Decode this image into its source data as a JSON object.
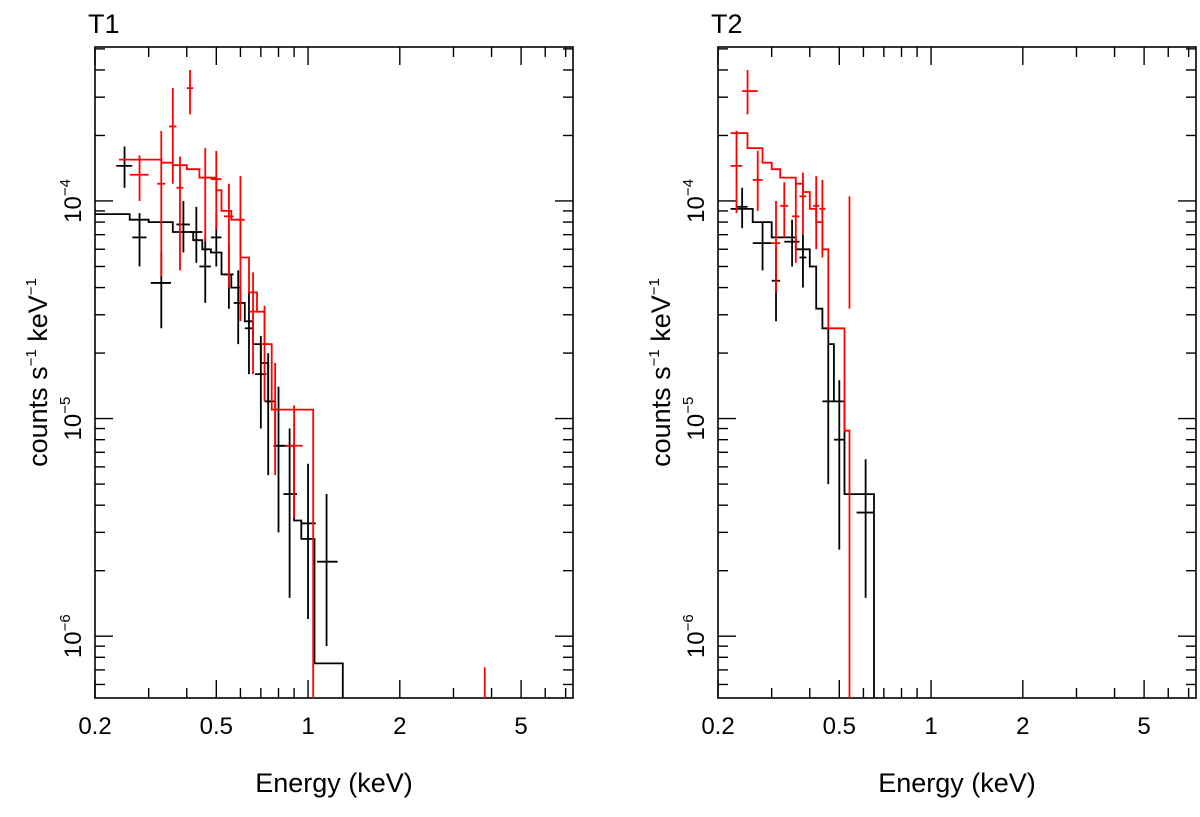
{
  "chart_data": [
    {
      "type": "scatter",
      "title": "T1",
      "xlabel": "Energy (keV)",
      "ylabel": {
        "base": "counts s",
        "exp1": "−1",
        "mid": " keV",
        "exp2": "−1"
      },
      "xscale": "log",
      "yscale": "log",
      "xlim": [
        0.2,
        7.4
      ],
      "ylim": [
        5.2e-07,
        0.00051
      ],
      "xticks": [
        {
          "value": 0.2,
          "label": "0.2"
        },
        {
          "value": 0.5,
          "label": "0.5"
        },
        {
          "value": 1,
          "label": "1"
        },
        {
          "value": 2,
          "label": "2"
        },
        {
          "value": 5,
          "label": "5"
        }
      ],
      "yticks": [
        {
          "value": 0.0001,
          "base": "10",
          "exp": "−4"
        },
        {
          "value": 1e-05,
          "base": "10",
          "exp": "−5"
        },
        {
          "value": 1e-06,
          "base": "10",
          "exp": "−6"
        }
      ],
      "series": [
        {
          "name": "black",
          "color": "#000000",
          "points": [
            {
              "x": 0.25,
              "xlo": 0.235,
              "xhi": 0.265,
              "y": 0.000145,
              "ylo": 0.000115,
              "yhi": 0.000178
            },
            {
              "x": 0.28,
              "xlo": 0.265,
              "xhi": 0.295,
              "y": 6.8e-05,
              "ylo": 5e-05,
              "yhi": 8.8e-05
            },
            {
              "x": 0.33,
              "xlo": 0.305,
              "xhi": 0.355,
              "y": 4.2e-05,
              "ylo": 2.6e-05,
              "yhi": 5.8e-05
            },
            {
              "x": 0.39,
              "xlo": 0.37,
              "xhi": 0.41,
              "y": 7.8e-05,
              "ylo": 5.8e-05,
              "yhi": 0.0001
            },
            {
              "x": 0.43,
              "xlo": 0.41,
              "xhi": 0.45,
              "y": 7.2e-05,
              "ylo": 5.2e-05,
              "yhi": 9.4e-05
            },
            {
              "x": 0.46,
              "xlo": 0.44,
              "xhi": 0.48,
              "y": 5e-05,
              "ylo": 3.4e-05,
              "yhi": 6.8e-05
            },
            {
              "x": 0.5,
              "xlo": 0.48,
              "xhi": 0.52,
              "y": 6.8e-05,
              "ylo": 5e-05,
              "yhi": 8.8e-05
            },
            {
              "x": 0.55,
              "xlo": 0.53,
              "xhi": 0.57,
              "y": 4.6e-05,
              "ylo": 3.2e-05,
              "yhi": 6.2e-05
            },
            {
              "x": 0.59,
              "xlo": 0.57,
              "xhi": 0.61,
              "y": 3.4e-05,
              "ylo": 2.2e-05,
              "yhi": 4.8e-05
            },
            {
              "x": 0.64,
              "xlo": 0.62,
              "xhi": 0.66,
              "y": 2.6e-05,
              "ylo": 1.6e-05,
              "yhi": 3.8e-05
            },
            {
              "x": 0.7,
              "xlo": 0.67,
              "xhi": 0.73,
              "y": 1.6e-05,
              "ylo": 9e-06,
              "yhi": 2.4e-05
            },
            {
              "x": 0.74,
              "xlo": 0.72,
              "xhi": 0.76,
              "y": 1.2e-05,
              "ylo": 5.5e-06,
              "yhi": 2e-05
            },
            {
              "x": 0.8,
              "xlo": 0.77,
              "xhi": 0.83,
              "y": 7.5e-06,
              "ylo": 3e-06,
              "yhi": 1.4e-05
            },
            {
              "x": 0.87,
              "xlo": 0.83,
              "xhi": 0.92,
              "y": 4.5e-06,
              "ylo": 1.5e-06,
              "yhi": 9e-06
            },
            {
              "x": 1.0,
              "xlo": 0.95,
              "xhi": 1.06,
              "y": 3.3e-06,
              "ylo": 1.2e-06,
              "yhi": 6.2e-06
            },
            {
              "x": 1.15,
              "xlo": 1.07,
              "xhi": 1.25,
              "y": 2.2e-06,
              "ylo": 9e-07,
              "yhi": 4.5e-06
            }
          ],
          "model": [
            [
              0.2,
              8.7e-05
            ],
            [
              0.26,
              8.7e-05
            ],
            [
              0.26,
              8.2e-05
            ],
            [
              0.3,
              8.2e-05
            ],
            [
              0.3,
              8e-05
            ],
            [
              0.36,
              8e-05
            ],
            [
              0.36,
              7.2e-05
            ],
            [
              0.42,
              7.2e-05
            ],
            [
              0.42,
              6.6e-05
            ],
            [
              0.45,
              6.6e-05
            ],
            [
              0.45,
              6e-05
            ],
            [
              0.48,
              6e-05
            ],
            [
              0.48,
              5.8e-05
            ],
            [
              0.52,
              5.8e-05
            ],
            [
              0.52,
              4.6e-05
            ],
            [
              0.56,
              4.6e-05
            ],
            [
              0.56,
              4e-05
            ],
            [
              0.6,
              4e-05
            ],
            [
              0.6,
              3.4e-05
            ],
            [
              0.62,
              3.4e-05
            ],
            [
              0.62,
              2.8e-05
            ],
            [
              0.66,
              2.8e-05
            ],
            [
              0.66,
              2.2e-05
            ],
            [
              0.7,
              2.2e-05
            ],
            [
              0.7,
              1.8e-05
            ],
            [
              0.74,
              1.8e-05
            ],
            [
              0.74,
              1.2e-05
            ],
            [
              0.78,
              1.2e-05
            ],
            [
              0.78,
              7.5e-06
            ],
            [
              0.9,
              7.5e-06
            ],
            [
              0.9,
              3.4e-06
            ],
            [
              0.95,
              3.4e-06
            ],
            [
              0.95,
              2.8e-06
            ],
            [
              1.05,
              2.8e-06
            ],
            [
              1.05,
              7.5e-07
            ],
            [
              1.3,
              7.5e-07
            ],
            [
              1.3,
              5.2e-07
            ]
          ]
        },
        {
          "name": "red",
          "color": "#ff0000",
          "points": [
            {
              "x": 0.28,
              "xlo": 0.26,
              "xhi": 0.3,
              "y": 0.000132,
              "ylo": 0.0001,
              "yhi": 0.000162
            },
            {
              "x": 0.33,
              "xlo": 0.32,
              "xhi": 0.34,
              "y": 0.00012,
              "ylo": 4.5e-05,
              "yhi": 0.00021
            },
            {
              "x": 0.36,
              "xlo": 0.35,
              "xhi": 0.37,
              "y": 0.00022,
              "ylo": 0.00012,
              "yhi": 0.00033
            },
            {
              "x": 0.38,
              "xlo": 0.37,
              "xhi": 0.39,
              "y": 0.000115,
              "ylo": 4.8e-05,
              "yhi": 0.00016
            },
            {
              "x": 0.41,
              "xlo": 0.4,
              "xhi": 0.42,
              "y": 0.00033,
              "ylo": 0.00025,
              "yhi": 0.0004
            },
            {
              "x": 0.46,
              "xlo": 0.44,
              "xhi": 0.48,
              "y": 0.000128,
              "ylo": 6.5e-05,
              "yhi": 0.000175
            },
            {
              "x": 0.5,
              "xlo": 0.48,
              "xhi": 0.52,
              "y": 0.000126,
              "ylo": 7.4e-05,
              "yhi": 0.00017
            },
            {
              "x": 0.55,
              "xlo": 0.53,
              "xhi": 0.57,
              "y": 8.5e-05,
              "ylo": 4e-05,
              "yhi": 0.00012
            },
            {
              "x": 0.6,
              "xlo": 0.58,
              "xhi": 0.62,
              "y": 8.2e-05,
              "ylo": 2.8e-05,
              "yhi": 0.00013
            },
            {
              "x": 0.66,
              "xlo": 0.64,
              "xhi": 0.68,
              "y": 3.1e-05,
              "ylo": 1.6e-05,
              "yhi": 4.7e-05
            },
            {
              "x": 0.72,
              "xlo": 0.7,
              "xhi": 0.74,
              "y": 2.2e-05,
              "ylo": 1.2e-05,
              "yhi": 3.3e-05
            },
            {
              "x": 0.78,
              "xlo": 0.76,
              "xhi": 0.8,
              "y": 1.1e-05,
              "ylo": 5.5e-06,
              "yhi": 1.8e-05
            },
            {
              "x": 0.9,
              "xlo": 0.84,
              "xhi": 0.96,
              "y": 7.5e-06,
              "ylo": 3.5e-06,
              "yhi": 1.15e-05
            },
            {
              "x": 3.8,
              "y": 5.3e-07,
              "ylo": 5.2e-07,
              "yhi": 7.2e-07
            }
          ],
          "model": [
            [
              0.24,
              0.000155
            ],
            [
              0.33,
              0.000155
            ],
            [
              0.33,
              0.00015
            ],
            [
              0.36,
              0.00015
            ],
            [
              0.36,
              0.000146
            ],
            [
              0.4,
              0.000146
            ],
            [
              0.4,
              0.00014
            ],
            [
              0.44,
              0.00014
            ],
            [
              0.44,
              0.000128
            ],
            [
              0.5,
              0.000128
            ],
            [
              0.5,
              0.000112
            ],
            [
              0.52,
              0.000112
            ],
            [
              0.52,
              9e-05
            ],
            [
              0.56,
              9e-05
            ],
            [
              0.56,
              8.2e-05
            ],
            [
              0.6,
              8.2e-05
            ],
            [
              0.6,
              5.5e-05
            ],
            [
              0.64,
              5.5e-05
            ],
            [
              0.64,
              3.8e-05
            ],
            [
              0.68,
              3.8e-05
            ],
            [
              0.68,
              3.1e-05
            ],
            [
              0.72,
              3.1e-05
            ],
            [
              0.72,
              2.2e-05
            ],
            [
              0.76,
              2.2e-05
            ],
            [
              0.76,
              1.1e-05
            ],
            [
              1.04,
              1.1e-05
            ],
            [
              1.04,
              5.2e-07
            ]
          ]
        }
      ]
    },
    {
      "type": "scatter",
      "title": "T2",
      "xlabel": "Energy (keV)",
      "ylabel": {
        "base": "counts s",
        "exp1": "−1",
        "mid": " keV",
        "exp2": "−1"
      },
      "xscale": "log",
      "yscale": "log",
      "xlim": [
        0.2,
        7.4
      ],
      "ylim": [
        5.2e-07,
        0.00051
      ],
      "xticks": [
        {
          "value": 0.2,
          "label": "0.2"
        },
        {
          "value": 0.5,
          "label": "0.5"
        },
        {
          "value": 1,
          "label": "1"
        },
        {
          "value": 2,
          "label": "2"
        },
        {
          "value": 5,
          "label": "5"
        }
      ],
      "yticks": [
        {
          "value": 0.0001,
          "base": "10",
          "exp": "−4"
        },
        {
          "value": 1e-05,
          "base": "10",
          "exp": "−5"
        },
        {
          "value": 1e-06,
          "base": "10",
          "exp": "−6"
        }
      ],
      "series": [
        {
          "name": "black",
          "color": "#000000",
          "points": [
            {
              "x": 0.24,
              "xlo": 0.23,
              "xhi": 0.25,
              "y": 9.4e-05,
              "ylo": 7.5e-05,
              "yhi": 0.000115
            },
            {
              "x": 0.28,
              "xlo": 0.26,
              "xhi": 0.3,
              "y": 6.4e-05,
              "ylo": 4.8e-05,
              "yhi": 8e-05
            },
            {
              "x": 0.31,
              "xlo": 0.3,
              "xhi": 0.32,
              "y": 4.3e-05,
              "ylo": 2.8e-05,
              "yhi": 6e-05
            },
            {
              "x": 0.35,
              "xlo": 0.33,
              "xhi": 0.37,
              "y": 6.5e-05,
              "ylo": 5e-05,
              "yhi": 8.2e-05
            },
            {
              "x": 0.38,
              "xlo": 0.37,
              "xhi": 0.39,
              "y": 5.5e-05,
              "ylo": 4e-05,
              "yhi": 7e-05
            },
            {
              "x": 0.46,
              "xlo": 0.44,
              "xhi": 0.48,
              "y": 1.2e-05,
              "ylo": 5e-06,
              "yhi": 2.2e-05
            },
            {
              "x": 0.5,
              "xlo": 0.48,
              "xhi": 0.52,
              "y": 8e-06,
              "ylo": 2.5e-06,
              "yhi": 1.5e-05
            },
            {
              "x": 0.61,
              "xlo": 0.57,
              "xhi": 0.65,
              "y": 3.7e-06,
              "ylo": 1.5e-06,
              "yhi": 6.5e-06
            }
          ],
          "model": [
            [
              0.22,
              9.2e-05
            ],
            [
              0.26,
              9.2e-05
            ],
            [
              0.26,
              8e-05
            ],
            [
              0.3,
              8e-05
            ],
            [
              0.3,
              6.8e-05
            ],
            [
              0.36,
              6.8e-05
            ],
            [
              0.36,
              6e-05
            ],
            [
              0.4,
              6e-05
            ],
            [
              0.4,
              5e-05
            ],
            [
              0.42,
              5e-05
            ],
            [
              0.42,
              3.2e-05
            ],
            [
              0.44,
              3.2e-05
            ],
            [
              0.44,
              2.6e-05
            ],
            [
              0.46,
              2.6e-05
            ],
            [
              0.46,
              2.2e-05
            ],
            [
              0.48,
              2.2e-05
            ],
            [
              0.48,
              1.2e-05
            ],
            [
              0.52,
              1.2e-05
            ],
            [
              0.52,
              4.5e-06
            ],
            [
              0.65,
              4.5e-06
            ],
            [
              0.65,
              5.2e-07
            ]
          ]
        },
        {
          "name": "red",
          "color": "#ff0000",
          "points": [
            {
              "x": 0.23,
              "xlo": 0.22,
              "xhi": 0.24,
              "y": 0.000145,
              "ylo": 8.8e-05,
              "yhi": 0.00021
            },
            {
              "x": 0.25,
              "xlo": 0.24,
              "xhi": 0.27,
              "y": 0.00032,
              "ylo": 0.00025,
              "yhi": 0.0004
            },
            {
              "x": 0.27,
              "xlo": 0.26,
              "xhi": 0.28,
              "y": 0.000125,
              "ylo": 9e-05,
              "yhi": 0.00017
            },
            {
              "x": 0.31,
              "xlo": 0.3,
              "xhi": 0.32,
              "y": 6.4e-05,
              "ylo": 3.8e-05,
              "yhi": 0.0001
            },
            {
              "x": 0.33,
              "xlo": 0.32,
              "xhi": 0.34,
              "y": 9.5e-05,
              "ylo": 6.8e-05,
              "yhi": 0.000122
            },
            {
              "x": 0.36,
              "xlo": 0.35,
              "xhi": 0.37,
              "y": 8.5e-05,
              "ylo": 5.2e-05,
              "yhi": 0.00012
            },
            {
              "x": 0.38,
              "xlo": 0.37,
              "xhi": 0.39,
              "y": 0.000105,
              "ylo": 7e-05,
              "yhi": 0.000135
            },
            {
              "x": 0.42,
              "xlo": 0.41,
              "xhi": 0.43,
              "y": 9.5e-05,
              "ylo": 6e-05,
              "yhi": 0.00013
            },
            {
              "x": 0.44,
              "xlo": 0.43,
              "xhi": 0.45,
              "y": 9.2e-05,
              "ylo": 5.5e-05,
              "yhi": 0.000125
            },
            {
              "x": 0.54,
              "y": 6.8e-05,
              "ylo": 3.2e-05,
              "yhi": 0.000105
            }
          ],
          "model": [
            [
              0.22,
              0.000205
            ],
            [
              0.25,
              0.000205
            ],
            [
              0.25,
              0.000175
            ],
            [
              0.28,
              0.000175
            ],
            [
              0.28,
              0.00015
            ],
            [
              0.3,
              0.00015
            ],
            [
              0.3,
              0.00014
            ],
            [
              0.32,
              0.00014
            ],
            [
              0.32,
              0.000128
            ],
            [
              0.36,
              0.000128
            ],
            [
              0.36,
              0.00012
            ],
            [
              0.38,
              0.00012
            ],
            [
              0.38,
              0.00011
            ],
            [
              0.4,
              0.00011
            ],
            [
              0.4,
              9.2e-05
            ],
            [
              0.42,
              9.2e-05
            ],
            [
              0.42,
              8e-05
            ],
            [
              0.44,
              8e-05
            ],
            [
              0.44,
              6e-05
            ],
            [
              0.46,
              6e-05
            ],
            [
              0.46,
              2.6e-05
            ],
            [
              0.52,
              2.6e-05
            ],
            [
              0.52,
              8.8e-06
            ],
            [
              0.54,
              8.8e-06
            ],
            [
              0.54,
              5.2e-07
            ]
          ]
        }
      ]
    }
  ]
}
